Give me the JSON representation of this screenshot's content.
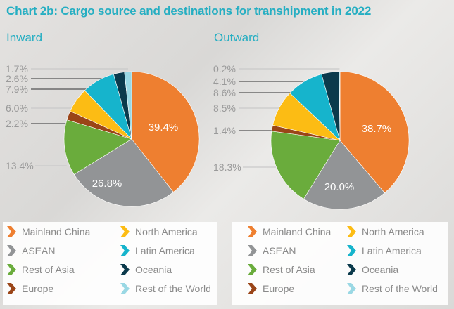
{
  "title": "Chart 2b: Cargo source and destinations for transhipment in 2022",
  "colors": {
    "Mainland China": "#ee7f30",
    "ASEAN": "#929496",
    "Rest of Asia": "#6aac3c",
    "Europe": "#9a4518",
    "North America": "#fcbc14",
    "Latin America": "#16b4cc",
    "Oceania": "#0b3a4c",
    "Rest of the World": "#9ad8e4"
  },
  "chart_data": [
    {
      "type": "pie",
      "title": "Inward",
      "categories": [
        "Mainland China",
        "ASEAN",
        "Rest of Asia",
        "Europe",
        "North America",
        "Latin America",
        "Oceania",
        "Rest of the World"
      ],
      "values": [
        39.4,
        26.8,
        13.4,
        2.2,
        6.0,
        7.9,
        2.6,
        1.7
      ],
      "labels": [
        "39.4%",
        "26.8%",
        "13.4%",
        "2.2%",
        "6.0%",
        "7.9%",
        "2.6%",
        "1.7%"
      ]
    },
    {
      "type": "pie",
      "title": "Outward",
      "categories": [
        "Mainland China",
        "ASEAN",
        "Rest of Asia",
        "Europe",
        "North America",
        "Latin America",
        "Oceania",
        "Rest of the World"
      ],
      "values": [
        38.7,
        20.0,
        18.3,
        1.4,
        8.5,
        8.6,
        4.1,
        0.2
      ],
      "labels": [
        "38.7%",
        "20.0%",
        "18.3%",
        "1.4%",
        "8.5%",
        "8.6%",
        "4.1%",
        "0.2%"
      ]
    }
  ],
  "legend": [
    "Mainland China",
    "ASEAN",
    "Rest of Asia",
    "Europe",
    "North America",
    "Latin America",
    "Oceania",
    "Rest of the World"
  ]
}
